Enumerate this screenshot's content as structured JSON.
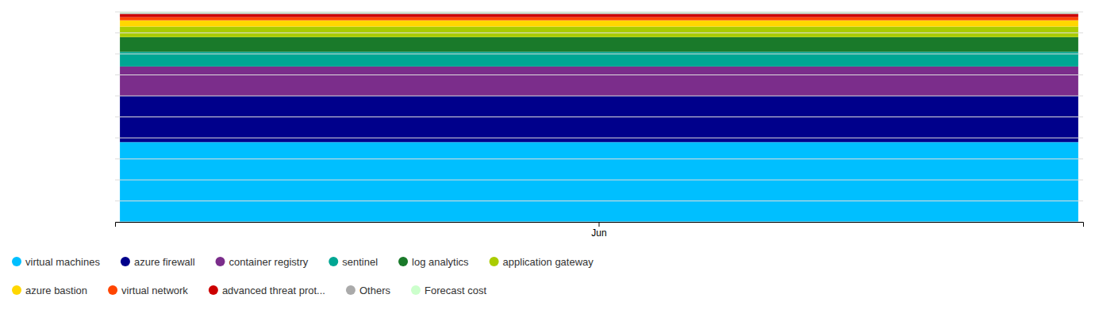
{
  "chart_data": {
    "type": "bar",
    "stacked": true,
    "categories": [
      "Jun"
    ],
    "series": [
      {
        "name": "virtual machines",
        "color": "#00BFFF",
        "values": [
          38
        ]
      },
      {
        "name": "azure firewall",
        "color": "#00008B",
        "values": [
          22
        ]
      },
      {
        "name": "container registry",
        "color": "#7B2D8B",
        "values": [
          14
        ]
      },
      {
        "name": "sentinel",
        "color": "#00A693",
        "values": [
          7
        ]
      },
      {
        "name": "log analytics",
        "color": "#1A7A2A",
        "values": [
          7
        ]
      },
      {
        "name": "application gateway",
        "color": "#AACC00",
        "values": [
          5
        ]
      },
      {
        "name": "azure bastion",
        "color": "#FFD700",
        "values": [
          3
        ]
      },
      {
        "name": "virtual network",
        "color": "#FF4500",
        "values": [
          1.5
        ]
      },
      {
        "name": "advanced threat prot...",
        "color": "#CC0000",
        "values": [
          1.5
        ]
      },
      {
        "name": "Others",
        "color": "#AAAAAA",
        "values": [
          0.5
        ]
      },
      {
        "name": "Forecast cost",
        "color": "#CCFFCC",
        "values": [
          0.5
        ]
      }
    ],
    "ylim": [
      0,
      100
    ],
    "yticks": [
      0,
      10,
      20,
      30,
      40,
      50,
      60,
      70,
      80,
      90,
      100
    ],
    "grid": true,
    "tick_labels": "x",
    "legend": "bottom"
  }
}
